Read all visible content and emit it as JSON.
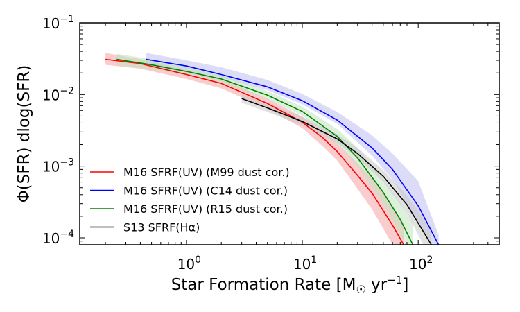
{
  "chart_data": {
    "type": "line",
    "title": "",
    "xlabel": "Star Formation Rate [M☉ yr⁻¹]",
    "ylabel": "Φ(SFR) dlog(SFR)",
    "xscale": "log",
    "yscale": "log",
    "xlim": [
      0.12,
      500
    ],
    "ylim": [
      8e-05,
      0.1
    ],
    "grid": false,
    "legend_position": "lower-left",
    "x_ticks": [
      {
        "value": 1,
        "label": "10",
        "exp": "0"
      },
      {
        "value": 10,
        "label": "10",
        "exp": "1"
      },
      {
        "value": 100,
        "label": "10",
        "exp": "2"
      }
    ],
    "y_ticks": [
      {
        "value": 0.0001,
        "label": "10",
        "exp": "−4"
      },
      {
        "value": 0.001,
        "label": "10",
        "exp": "−3"
      },
      {
        "value": 0.01,
        "label": "10",
        "exp": "−2"
      },
      {
        "value": 0.1,
        "label": "10",
        "exp": "−1"
      }
    ],
    "series": [
      {
        "name": "M16 SFRF(UV) (M99 dust cor.)",
        "color": "#ff0000",
        "band_color": "#f4a4a4",
        "x": [
          0.2,
          0.4,
          1,
          2,
          5,
          10,
          15,
          20,
          30,
          40,
          60,
          75
        ],
        "y": [
          0.031,
          0.027,
          0.019,
          0.0143,
          0.0075,
          0.0041,
          0.0025,
          0.0016,
          0.00074,
          0.00042,
          0.00015,
          8e-05
        ],
        "lower": [
          0.026,
          0.023,
          0.0165,
          0.0122,
          0.0063,
          0.0034,
          0.0019,
          0.0012,
          0.00048,
          0.00025,
          8e-05,
          5e-05
        ],
        "upper": [
          0.038,
          0.031,
          0.022,
          0.0165,
          0.0088,
          0.0049,
          0.0031,
          0.0021,
          0.0011,
          0.00068,
          0.00028,
          0.00016
        ]
      },
      {
        "name": "M16 SFRF(UV) (C14 dust cor.)",
        "color": "#0000ff",
        "band_color": "#bfbff4",
        "x": [
          0.45,
          1,
          2,
          5,
          10,
          20,
          40,
          60,
          100,
          150
        ],
        "y": [
          0.031,
          0.025,
          0.019,
          0.0128,
          0.0082,
          0.0044,
          0.0018,
          0.0009,
          0.00028,
          8e-05
        ],
        "lower": [
          0.026,
          0.0215,
          0.017,
          0.0115,
          0.0073,
          0.0039,
          0.0014,
          0.00065,
          0.00016,
          6e-05
        ],
        "upper": [
          0.038,
          0.03,
          0.024,
          0.016,
          0.0102,
          0.0057,
          0.0027,
          0.0015,
          0.00062,
          0.00011
        ]
      },
      {
        "name": "M16 SFRF(UV) (R15 dust cor.)",
        "color": "#008000",
        "band_color": "#bfe4bf",
        "x": [
          0.25,
          0.5,
          1,
          2,
          5,
          10,
          20,
          30,
          50,
          70,
          90
        ],
        "y": [
          0.031,
          0.026,
          0.021,
          0.0165,
          0.0098,
          0.0058,
          0.0026,
          0.0013,
          0.00043,
          0.00018,
          8e-05
        ],
        "lower": [
          0.026,
          0.0225,
          0.0185,
          0.0145,
          0.0086,
          0.0051,
          0.0021,
          0.001,
          0.0003,
          0.00011,
          5e-05
        ],
        "upper": [
          0.037,
          0.031,
          0.025,
          0.019,
          0.0112,
          0.0068,
          0.0033,
          0.0018,
          0.00065,
          0.00031,
          0.00016
        ]
      },
      {
        "name": "S13 SFRF(Hα)",
        "color": "#000000",
        "band_color": "#c8c8c8",
        "x": [
          3,
          5,
          10,
          20,
          30,
          50,
          80,
          100,
          130
        ],
        "y": [
          0.0088,
          0.0065,
          0.0042,
          0.0024,
          0.0015,
          0.00072,
          0.00029,
          0.00016,
          8e-05
        ],
        "lower": [
          0.0077,
          0.0057,
          0.0037,
          0.0021,
          0.0013,
          0.00061,
          0.00022,
          0.00011,
          5e-05
        ],
        "upper": [
          0.0101,
          0.0075,
          0.0049,
          0.0028,
          0.0018,
          0.00088,
          0.00039,
          0.00024,
          0.00013
        ]
      }
    ]
  }
}
